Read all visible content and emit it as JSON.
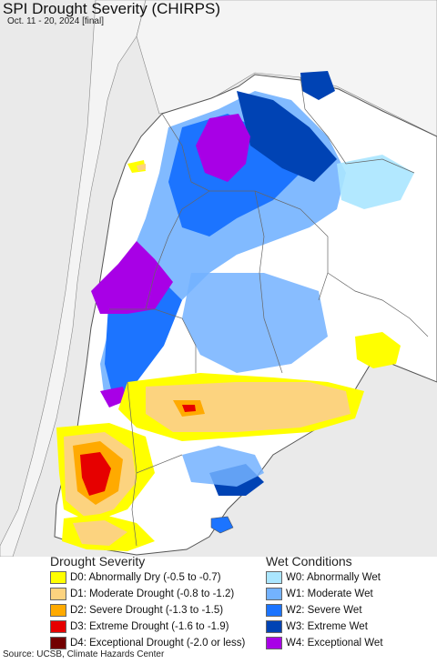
{
  "header": {
    "title": "SPI Drought Severity (CHIRPS)",
    "subtitle": "Oct. 11 - 20, 2024 [final]"
  },
  "map": {
    "colors": {
      "ocean": "#eaeaea",
      "land": "#ffffff",
      "outside_land": "#f4f4f4",
      "border": "#666666"
    },
    "shown_classes": [
      "W4",
      "W3",
      "W2",
      "W1",
      "W0",
      "D0",
      "D1",
      "D2",
      "D3",
      "D4"
    ]
  },
  "legend": {
    "drought": {
      "heading": "Drought Severity",
      "items": [
        {
          "label": "D0: Abnormally Dry (-0.5 to -0.7)",
          "color": "#ffff00"
        },
        {
          "label": "D1: Moderate Drought (-0.8 to -1.2)",
          "color": "#fcd37f"
        },
        {
          "label": "D2: Severe Drought (-1.3 to -1.5)",
          "color": "#ffaa00"
        },
        {
          "label": "D3: Extreme Drought (-1.6 to -1.9)",
          "color": "#e60000"
        },
        {
          "label": "D4: Exceptional Drought (-2.0 or less)",
          "color": "#730000"
        }
      ]
    },
    "wet": {
      "heading": "Wet Conditions",
      "items": [
        {
          "label": "W0: Abnormally Wet",
          "color": "#aae6ff"
        },
        {
          "label": "W1: Moderate Wet",
          "color": "#73b2ff"
        },
        {
          "label": "W2: Severe Wet",
          "color": "#1c74ff"
        },
        {
          "label": "W3: Extreme Wet",
          "color": "#0043b4"
        },
        {
          "label": "W4: Exceptional Wet",
          "color": "#a800e6"
        }
      ]
    }
  },
  "footer": {
    "source": "Source: UCSB, Climate Hazards Center"
  }
}
